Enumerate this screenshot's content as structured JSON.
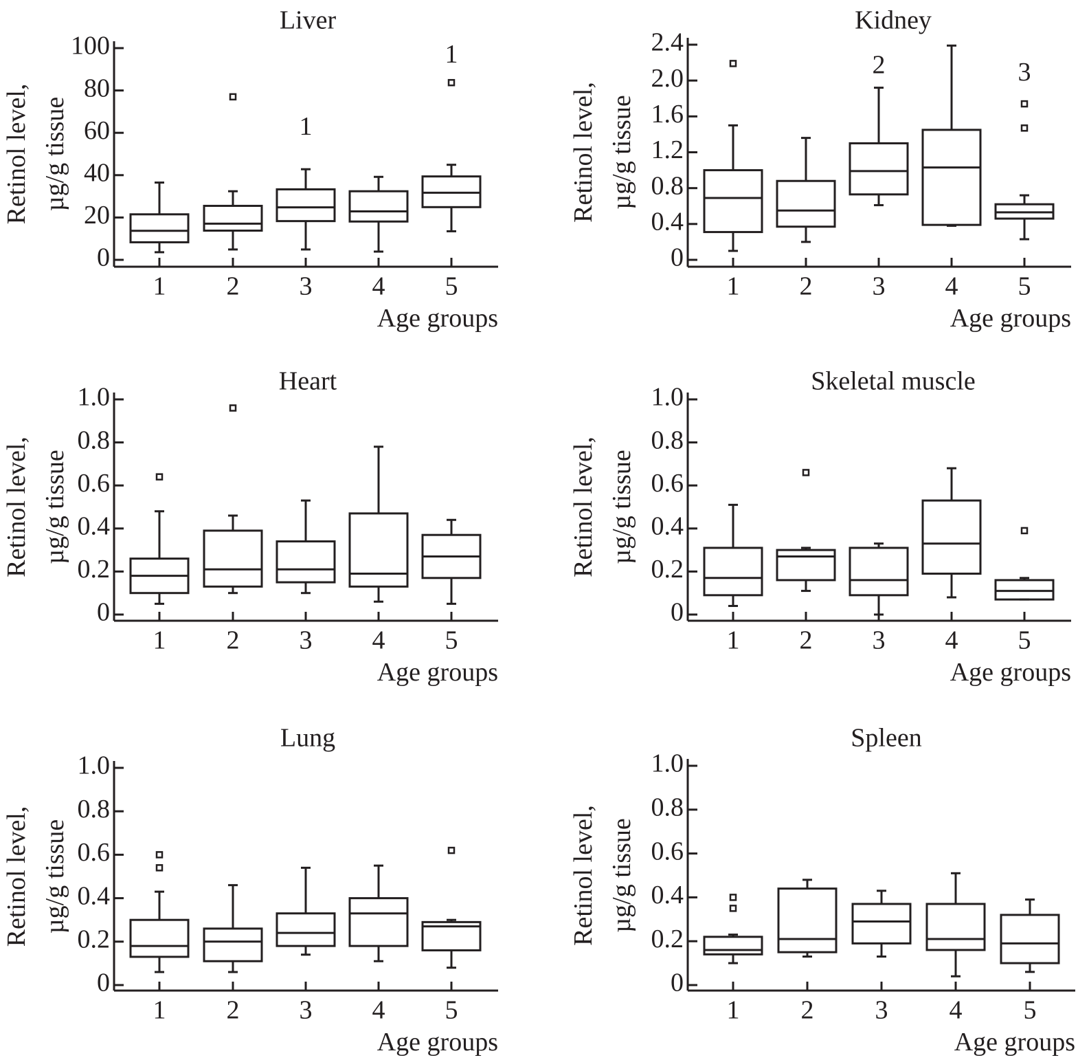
{
  "figure": {
    "description": "Retinol level in tissues by age group (box plots)"
  },
  "chart_data": [
    {
      "type": "box",
      "title": "Liver",
      "xlabel": "Age groups",
      "ylabel_line1": "Retinol level,",
      "ylabel_line2": "µg/g tissue",
      "categories": [
        "1",
        "2",
        "3",
        "4",
        "5"
      ],
      "ylim": [
        0,
        100
      ],
      "yticks": [
        0,
        20,
        40,
        60,
        80,
        100
      ],
      "ytick_labels": [
        "0",
        "20",
        "40",
        "60",
        "80",
        "100"
      ],
      "boxes": [
        {
          "group": "1",
          "whisker_low": 3.6,
          "q1": 8.3,
          "median": 13.7,
          "q3": 21.5,
          "whisker_high": 36.5,
          "outliers": []
        },
        {
          "group": "2",
          "whisker_low": 4.9,
          "q1": 13.8,
          "median": 17.1,
          "q3": 25.5,
          "whisker_high": 32.4,
          "outliers": [
            77
          ]
        },
        {
          "group": "3",
          "whisker_low": 4.9,
          "q1": 18.3,
          "median": 24.8,
          "q3": 33.3,
          "whisker_high": 42.8,
          "outliers": []
        },
        {
          "group": "4",
          "whisker_low": 3.9,
          "q1": 18.1,
          "median": 22.9,
          "q3": 32.4,
          "whisker_high": 39.2,
          "outliers": []
        },
        {
          "group": "5",
          "whisker_low": 13.5,
          "q1": 24.9,
          "median": 31.7,
          "q3": 39.4,
          "whisker_high": 44.9,
          "outliers": [
            83.7
          ]
        }
      ],
      "annotations": [
        {
          "group": "3",
          "text": "1",
          "y": 62
        },
        {
          "group": "5",
          "text": "1",
          "y": 96
        }
      ]
    },
    {
      "type": "box",
      "title": "Kidney",
      "xlabel": "Age groups",
      "ylabel_line1": "Retinol level,",
      "ylabel_line2": "µg/g tissue",
      "categories": [
        "1",
        "2",
        "3",
        "4",
        "5"
      ],
      "ylim": [
        0,
        2.4
      ],
      "yticks": [
        0,
        0.4,
        0.8,
        1.2,
        1.6,
        2.0,
        2.4
      ],
      "ytick_labels": [
        "0",
        "0.4",
        "0.8",
        "1.2",
        "1.6",
        "2.0",
        "2.4"
      ],
      "boxes": [
        {
          "group": "1",
          "whisker_low": 0.1,
          "q1": 0.31,
          "median": 0.69,
          "q3": 1.0,
          "whisker_high": 1.5,
          "outliers": [
            2.19
          ]
        },
        {
          "group": "2",
          "whisker_low": 0.2,
          "q1": 0.37,
          "median": 0.55,
          "q3": 0.88,
          "whisker_high": 1.36,
          "outliers": []
        },
        {
          "group": "3",
          "whisker_low": 0.61,
          "q1": 0.73,
          "median": 0.99,
          "q3": 1.3,
          "whisker_high": 1.92,
          "outliers": []
        },
        {
          "group": "4",
          "whisker_low": 0.38,
          "q1": 0.39,
          "median": 1.03,
          "q3": 1.45,
          "whisker_high": 2.39,
          "outliers": []
        },
        {
          "group": "5",
          "whisker_low": 0.23,
          "q1": 0.46,
          "median": 0.53,
          "q3": 0.62,
          "whisker_high": 0.72,
          "outliers": [
            1.74,
            1.47
          ]
        }
      ],
      "annotations": [
        {
          "group": "3",
          "text": "2",
          "y": 2.15
        },
        {
          "group": "5",
          "text": "3",
          "y": 2.07
        }
      ]
    },
    {
      "type": "box",
      "title": "Heart",
      "xlabel": "Age groups",
      "ylabel_line1": "Retinol level,",
      "ylabel_line2": "µg/g tissue",
      "categories": [
        "1",
        "2",
        "3",
        "4",
        "5"
      ],
      "ylim": [
        0,
        1.0
      ],
      "yticks": [
        0,
        0.2,
        0.4,
        0.6,
        0.8,
        1.0
      ],
      "ytick_labels": [
        "0",
        "0.2",
        "0.4",
        "0.6",
        "0.8",
        "1.0"
      ],
      "boxes": [
        {
          "group": "1",
          "whisker_low": 0.05,
          "q1": 0.1,
          "median": 0.18,
          "q3": 0.26,
          "whisker_high": 0.48,
          "outliers": [
            0.64
          ]
        },
        {
          "group": "2",
          "whisker_low": 0.1,
          "q1": 0.13,
          "median": 0.21,
          "q3": 0.39,
          "whisker_high": 0.46,
          "outliers": [
            0.96
          ]
        },
        {
          "group": "3",
          "whisker_low": 0.1,
          "q1": 0.15,
          "median": 0.21,
          "q3": 0.34,
          "whisker_high": 0.53,
          "outliers": []
        },
        {
          "group": "4",
          "whisker_low": 0.06,
          "q1": 0.13,
          "median": 0.19,
          "q3": 0.47,
          "whisker_high": 0.78,
          "outliers": []
        },
        {
          "group": "5",
          "whisker_low": 0.05,
          "q1": 0.17,
          "median": 0.27,
          "q3": 0.37,
          "whisker_high": 0.44,
          "outliers": []
        }
      ],
      "annotations": []
    },
    {
      "type": "box",
      "title": "Skeletal muscle",
      "xlabel": "Age groups",
      "ylabel_line1": "Retinol level,",
      "ylabel_line2": "µg/g tissue",
      "categories": [
        "1",
        "2",
        "3",
        "4",
        "5"
      ],
      "ylim": [
        0,
        1.0
      ],
      "yticks": [
        0,
        0.2,
        0.4,
        0.6,
        0.8,
        1.0
      ],
      "ytick_labels": [
        "0",
        "0.2",
        "0.4",
        "0.6",
        "0.8",
        "1.0"
      ],
      "boxes": [
        {
          "group": "1",
          "whisker_low": 0.04,
          "q1": 0.09,
          "median": 0.17,
          "q3": 0.31,
          "whisker_high": 0.51,
          "outliers": []
        },
        {
          "group": "2",
          "whisker_low": 0.11,
          "q1": 0.16,
          "median": 0.27,
          "q3": 0.3,
          "whisker_high": 0.31,
          "outliers": [
            0.66
          ]
        },
        {
          "group": "3",
          "whisker_low": 0.0,
          "q1": 0.09,
          "median": 0.16,
          "q3": 0.31,
          "whisker_high": 0.33,
          "outliers": []
        },
        {
          "group": "4",
          "whisker_low": 0.08,
          "q1": 0.19,
          "median": 0.33,
          "q3": 0.53,
          "whisker_high": 0.68,
          "outliers": []
        },
        {
          "group": "5",
          "whisker_low": 0.07,
          "q1": 0.07,
          "median": 0.11,
          "q3": 0.16,
          "whisker_high": 0.17,
          "outliers": [
            0.39
          ]
        }
      ],
      "annotations": []
    },
    {
      "type": "box",
      "title": "Lung",
      "xlabel": "Age groups",
      "ylabel_line1": "Retinol level,",
      "ylabel_line2": "µg/g tissue",
      "categories": [
        "1",
        "2",
        "3",
        "4",
        "5"
      ],
      "ylim": [
        0,
        1.0
      ],
      "yticks": [
        0,
        0.2,
        0.4,
        0.6,
        0.8,
        1.0
      ],
      "ytick_labels": [
        "0",
        "0.2",
        "0.4",
        "0.6",
        "0.8",
        "1.0"
      ],
      "boxes": [
        {
          "group": "1",
          "whisker_low": 0.06,
          "q1": 0.13,
          "median": 0.18,
          "q3": 0.3,
          "whisker_high": 0.43,
          "outliers": [
            0.6,
            0.54
          ]
        },
        {
          "group": "2",
          "whisker_low": 0.06,
          "q1": 0.11,
          "median": 0.2,
          "q3": 0.26,
          "whisker_high": 0.46,
          "outliers": []
        },
        {
          "group": "3",
          "whisker_low": 0.14,
          "q1": 0.18,
          "median": 0.24,
          "q3": 0.33,
          "whisker_high": 0.54,
          "outliers": []
        },
        {
          "group": "4",
          "whisker_low": 0.11,
          "q1": 0.18,
          "median": 0.33,
          "q3": 0.4,
          "whisker_high": 0.55,
          "outliers": []
        },
        {
          "group": "5",
          "whisker_low": 0.08,
          "q1": 0.16,
          "median": 0.27,
          "q3": 0.29,
          "whisker_high": 0.3,
          "outliers": [
            0.62
          ]
        }
      ],
      "annotations": []
    },
    {
      "type": "box",
      "title": "Spleen",
      "xlabel": "Age groups",
      "ylabel_line1": "Retinol level,",
      "ylabel_line2": "µg/g tissue",
      "categories": [
        "1",
        "2",
        "3",
        "4",
        "5"
      ],
      "ylim": [
        0,
        1.0
      ],
      "yticks": [
        0,
        0.2,
        0.4,
        0.6,
        0.8,
        1.0
      ],
      "ytick_labels": [
        "0",
        "0.2",
        "0.4",
        "0.6",
        "0.8",
        "1.0"
      ],
      "boxes": [
        {
          "group": "1",
          "whisker_low": 0.1,
          "q1": 0.14,
          "median": 0.16,
          "q3": 0.22,
          "whisker_high": 0.23,
          "outliers": [
            0.4,
            0.35
          ]
        },
        {
          "group": "2",
          "whisker_low": 0.13,
          "q1": 0.15,
          "median": 0.21,
          "q3": 0.44,
          "whisker_high": 0.48,
          "outliers": []
        },
        {
          "group": "3",
          "whisker_low": 0.13,
          "q1": 0.19,
          "median": 0.29,
          "q3": 0.37,
          "whisker_high": 0.43,
          "outliers": []
        },
        {
          "group": "4",
          "whisker_low": 0.04,
          "q1": 0.16,
          "median": 0.21,
          "q3": 0.37,
          "whisker_high": 0.51,
          "outliers": []
        },
        {
          "group": "5",
          "whisker_low": 0.06,
          "q1": 0.1,
          "median": 0.19,
          "q3": 0.32,
          "whisker_high": 0.39,
          "outliers": []
        }
      ],
      "annotations": []
    }
  ]
}
